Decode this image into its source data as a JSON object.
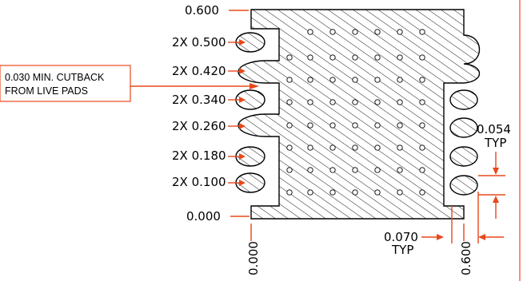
{
  "drawing": {
    "y_labels": [
      "0.600",
      "2X 0.500",
      "2X 0.420",
      "2X 0.340",
      "2X 0.260",
      "2X 0.180",
      "2X 0.100",
      "0.000"
    ],
    "x_labels": [
      "0.000",
      "0.600"
    ],
    "note": [
      "0.030 MIN. CUTBACK",
      "FROM LIVE PADS"
    ],
    "pitch_label": [
      "0.054",
      "TYP"
    ],
    "gap_label": [
      "0.070",
      "TYP"
    ],
    "colors": {
      "dimension": "#e8481a",
      "outline": "#000000"
    }
  }
}
